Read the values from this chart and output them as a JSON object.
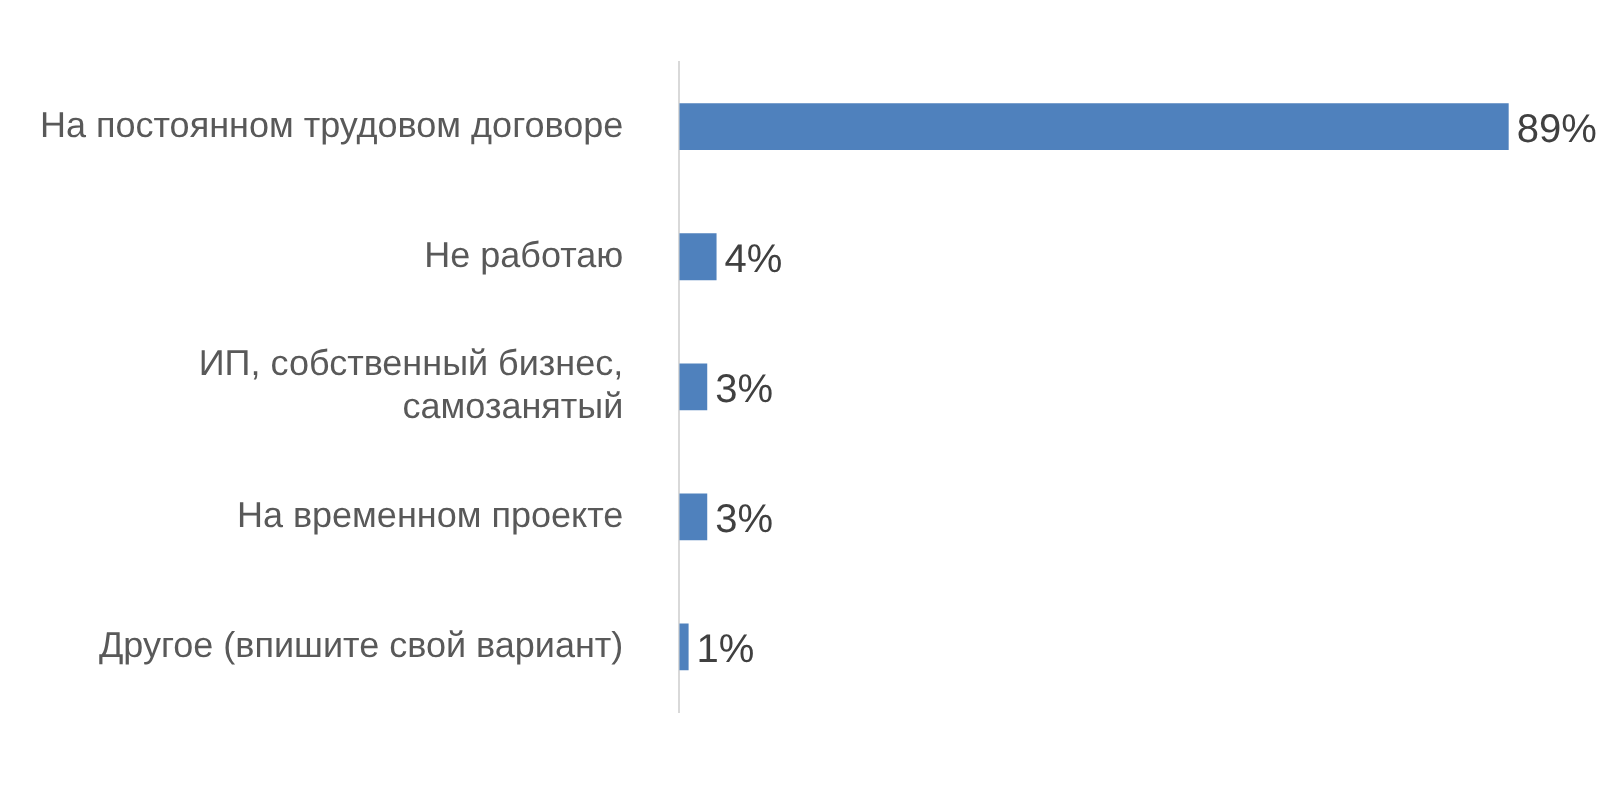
{
  "chart_data": {
    "type": "bar",
    "orientation": "horizontal",
    "categories": [
      "На постоянном трудовом договоре",
      "Не работаю",
      "ИП, собственный бизнес, самозанятый",
      "На временном проекте",
      "Другое (впишите свой вариант)"
    ],
    "values": [
      89,
      4,
      3,
      3,
      1
    ],
    "value_labels": [
      "89%",
      "4%",
      "3%",
      "3%",
      "1%"
    ],
    "color": "#4f81bd"
  }
}
